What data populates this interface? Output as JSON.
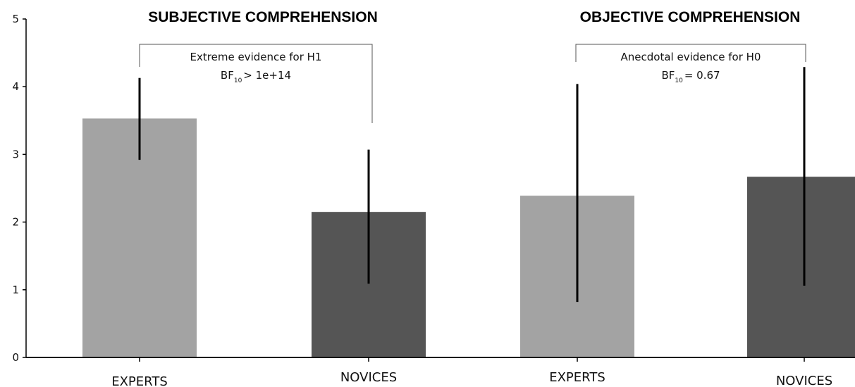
{
  "chart_data": {
    "type": "bar",
    "ylim": [
      0,
      5
    ],
    "yticks": [
      "0",
      "1",
      "2",
      "3",
      "4",
      "5"
    ],
    "grid": false,
    "colors": {
      "EXPERTS": "#a3a3a3",
      "NOVICES": "#555555",
      "error_bar": "#000000",
      "axis": "#000000",
      "bracket": "#555555"
    },
    "panels": [
      {
        "title": "SUBJECTIVE COMPREHENSION",
        "categories": [
          "EXPERTS",
          "NOVICES"
        ],
        "values": [
          3.53,
          2.15
        ],
        "error_low": [
          2.92,
          1.09
        ],
        "error_high": [
          4.13,
          3.07
        ],
        "annotation": {
          "line1": "Extreme evidence for H1",
          "bf_prefix": "BF",
          "bf_subscript": "10",
          "bf_value": "> 1e+14"
        }
      },
      {
        "title": "OBJECTIVE COMPREHENSION",
        "categories": [
          "EXPERTS",
          "NOVICES"
        ],
        "values": [
          2.39,
          2.67
        ],
        "error_low": [
          0.82,
          1.06
        ],
        "error_high": [
          4.04,
          4.29
        ],
        "annotation": {
          "line1": "Anecdotal evidence for H0",
          "bf_prefix": "BF",
          "bf_subscript": "10",
          "bf_value": "= 0.67"
        }
      }
    ]
  }
}
